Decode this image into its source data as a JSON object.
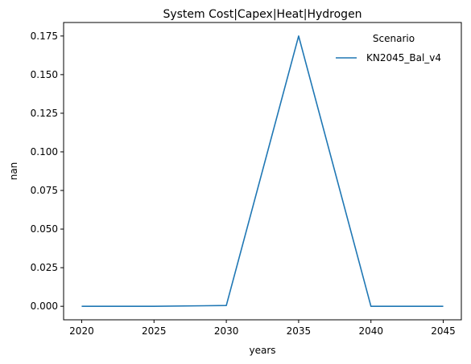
{
  "chart_data": {
    "type": "line",
    "title": "System Cost|Capex|Heat|Hydrogen",
    "xlabel": "years",
    "ylabel": "nan",
    "x": [
      2020,
      2025,
      2030,
      2035,
      2040,
      2045
    ],
    "series": [
      {
        "name": "KN2045_Bal_v4",
        "color": "#1f77b4",
        "values": [
          0.0,
          0.0,
          0.0005,
          0.175,
          0.0,
          0.0
        ]
      }
    ],
    "xticks": [
      "2020",
      "2025",
      "2030",
      "2035",
      "2040",
      "2045"
    ],
    "yticks": [
      "0.000",
      "0.025",
      "0.050",
      "0.075",
      "0.100",
      "0.125",
      "0.150",
      "0.175"
    ],
    "xlim": [
      2018.75,
      2046.25
    ],
    "ylim": [
      -0.00875,
      0.18375
    ],
    "grid": false,
    "legend": {
      "title": "Scenario",
      "placement": "top-right"
    }
  }
}
